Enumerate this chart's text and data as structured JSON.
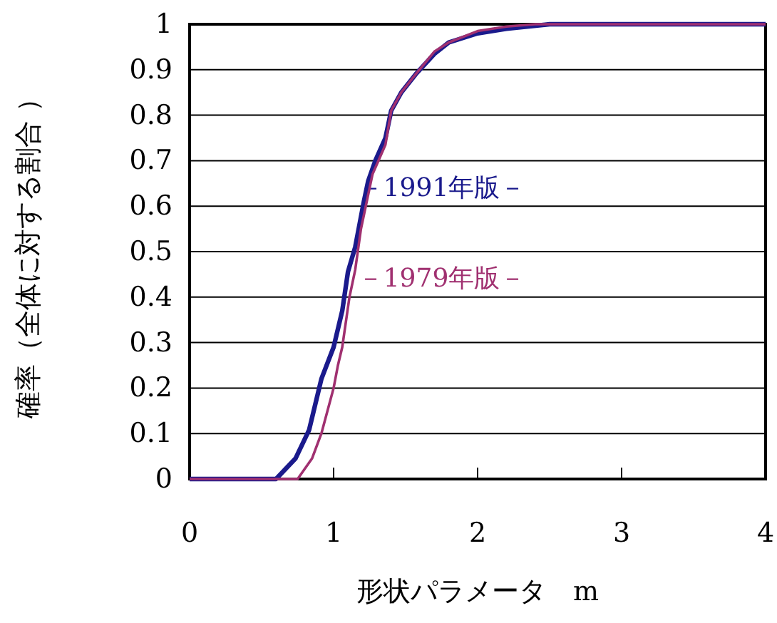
{
  "chart_data": {
    "type": "line",
    "xlabel": "形状パラメータ　m",
    "ylabel": "確率（全体に対する割合 ）",
    "xlim": [
      0,
      4
    ],
    "xticks": [
      0,
      1,
      2,
      3,
      4
    ],
    "ylim": [
      0,
      1
    ],
    "yticks": [
      0,
      {
        "value": 0.1,
        "label": "0.1"
      },
      {
        "value": 0.2,
        "label": "0.2"
      },
      {
        "value": 0.3,
        "label": "0.3"
      },
      {
        "value": 0.4,
        "label": "0.4"
      },
      {
        "value": 0.5,
        "label": "0.5"
      },
      {
        "value": 0.6,
        "label": "0.6"
      },
      {
        "value": 0.7,
        "label": "0.7"
      },
      {
        "value": 0.8,
        "label": "0.8"
      },
      {
        "value": 0.9,
        "label": "0.9"
      },
      1
    ],
    "grid": "y",
    "legend": false,
    "marker": "none",
    "line_style": "solid",
    "series": [
      {
        "name": "－1991年版－",
        "color": "#1a1a8c",
        "x": [
          0,
          0.6,
          0.735,
          0.83,
          0.915,
          1.0,
          1.06,
          1.1,
          1.15,
          1.21,
          1.24,
          1.29,
          1.36,
          1.4,
          1.47,
          1.57,
          1.7,
          1.8,
          2.0,
          2.2,
          2.5,
          4
        ],
        "values": [
          0,
          0,
          0.045,
          0.108,
          0.22,
          0.29,
          0.37,
          0.456,
          0.51,
          0.61,
          0.655,
          0.7,
          0.75,
          0.81,
          0.85,
          0.89,
          0.935,
          0.96,
          0.98,
          0.99,
          1,
          1
        ]
      },
      {
        "name": "－1979年版－",
        "color": "#a03070",
        "x": [
          0,
          0.75,
          0.85,
          0.915,
          1.0,
          1.03,
          1.06,
          1.11,
          1.15,
          1.19,
          1.23,
          1.27,
          1.36,
          1.4,
          1.47,
          1.57,
          1.7,
          1.8,
          2.0,
          2.2,
          2.4,
          4
        ],
        "values": [
          0,
          0,
          0.045,
          0.1,
          0.2,
          0.25,
          0.29,
          0.4,
          0.46,
          0.55,
          0.61,
          0.67,
          0.735,
          0.81,
          0.85,
          0.89,
          0.94,
          0.96,
          0.985,
          0.995,
          1,
          1
        ]
      }
    ]
  }
}
